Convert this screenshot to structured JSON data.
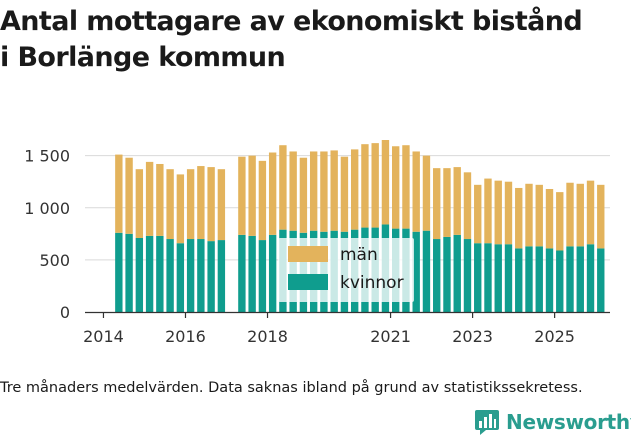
{
  "chart_data": {
    "type": "bar",
    "stacked": true,
    "title_lines": [
      "Antal mottagare av ekonomiskt bistånd",
      "i Borlänge kommun"
    ],
    "caption": "Tre månaders medelvärden. Data saknas ibland på grund av statistikssekretess.",
    "ylim": [
      0,
      1650
    ],
    "y_ticks": [
      {
        "value": 0,
        "label": "0"
      },
      {
        "value": 500,
        "label": "500"
      },
      {
        "value": 1000,
        "label": "1 000"
      },
      {
        "value": 1500,
        "label": "1 500"
      }
    ],
    "x_ticks": [
      {
        "value": 2014,
        "label": "2014"
      },
      {
        "value": 2016,
        "label": "2016"
      },
      {
        "value": 2018,
        "label": "2018"
      },
      {
        "value": 2021,
        "label": "2021"
      },
      {
        "value": 2023,
        "label": "2023"
      },
      {
        "value": 2025,
        "label": "2025"
      }
    ],
    "x_range": [
      2013.55,
      2026.35
    ],
    "bar_width_years": 0.18,
    "series": [
      {
        "name": "kvinnor",
        "color": "#0f9d8e",
        "points": [
          [
            2014.375,
            760
          ],
          [
            2014.625,
            750
          ],
          [
            2014.875,
            710
          ],
          [
            2015.125,
            730
          ],
          [
            2015.375,
            730
          ],
          [
            2015.625,
            700
          ],
          [
            2015.875,
            660
          ],
          [
            2016.125,
            700
          ],
          [
            2016.375,
            700
          ],
          [
            2016.625,
            680
          ],
          [
            2016.875,
            690
          ],
          [
            2017.375,
            740
          ],
          [
            2017.625,
            730
          ],
          [
            2017.875,
            690
          ],
          [
            2018.125,
            740
          ],
          [
            2018.375,
            790
          ],
          [
            2018.625,
            780
          ],
          [
            2018.875,
            760
          ],
          [
            2019.125,
            780
          ],
          [
            2019.375,
            770
          ],
          [
            2019.625,
            780
          ],
          [
            2019.875,
            770
          ],
          [
            2020.125,
            790
          ],
          [
            2020.375,
            810
          ],
          [
            2020.625,
            810
          ],
          [
            2020.875,
            840
          ],
          [
            2021.125,
            800
          ],
          [
            2021.375,
            800
          ],
          [
            2021.625,
            770
          ],
          [
            2021.875,
            780
          ],
          [
            2022.125,
            700
          ],
          [
            2022.375,
            720
          ],
          [
            2022.625,
            740
          ],
          [
            2022.875,
            700
          ],
          [
            2023.125,
            660
          ],
          [
            2023.375,
            660
          ],
          [
            2023.625,
            650
          ],
          [
            2023.875,
            650
          ],
          [
            2024.125,
            610
          ],
          [
            2024.375,
            630
          ],
          [
            2024.625,
            630
          ],
          [
            2024.875,
            610
          ],
          [
            2025.125,
            590
          ],
          [
            2025.375,
            630
          ],
          [
            2025.625,
            630
          ],
          [
            2025.875,
            650
          ],
          [
            2026.125,
            610
          ]
        ]
      },
      {
        "name": "män",
        "color": "#e3b35c",
        "points": [
          [
            2014.375,
            750
          ],
          [
            2014.625,
            730
          ],
          [
            2014.875,
            660
          ],
          [
            2015.125,
            710
          ],
          [
            2015.375,
            690
          ],
          [
            2015.625,
            670
          ],
          [
            2015.875,
            660
          ],
          [
            2016.125,
            670
          ],
          [
            2016.375,
            700
          ],
          [
            2016.625,
            710
          ],
          [
            2016.875,
            680
          ],
          [
            2017.375,
            750
          ],
          [
            2017.625,
            770
          ],
          [
            2017.875,
            760
          ],
          [
            2018.125,
            790
          ],
          [
            2018.375,
            810
          ],
          [
            2018.625,
            760
          ],
          [
            2018.875,
            720
          ],
          [
            2019.125,
            760
          ],
          [
            2019.375,
            770
          ],
          [
            2019.625,
            770
          ],
          [
            2019.875,
            720
          ],
          [
            2020.125,
            770
          ],
          [
            2020.375,
            800
          ],
          [
            2020.625,
            810
          ],
          [
            2020.875,
            810
          ],
          [
            2021.125,
            790
          ],
          [
            2021.375,
            800
          ],
          [
            2021.625,
            770
          ],
          [
            2021.875,
            720
          ],
          [
            2022.125,
            680
          ],
          [
            2022.375,
            660
          ],
          [
            2022.625,
            650
          ],
          [
            2022.875,
            640
          ],
          [
            2023.125,
            560
          ],
          [
            2023.375,
            620
          ],
          [
            2023.625,
            610
          ],
          [
            2023.875,
            600
          ],
          [
            2024.125,
            580
          ],
          [
            2024.375,
            600
          ],
          [
            2024.625,
            590
          ],
          [
            2024.875,
            570
          ],
          [
            2025.125,
            560
          ],
          [
            2025.375,
            610
          ],
          [
            2025.625,
            600
          ],
          [
            2025.875,
            610
          ],
          [
            2026.125,
            610
          ]
        ]
      }
    ],
    "legend": [
      {
        "label": "män",
        "color": "#e3b35c"
      },
      {
        "label": "kvinnor",
        "color": "#0f9d8e"
      }
    ],
    "grid": true
  },
  "brand": {
    "name": "Newsworthy",
    "color": "#2a9d8f"
  }
}
